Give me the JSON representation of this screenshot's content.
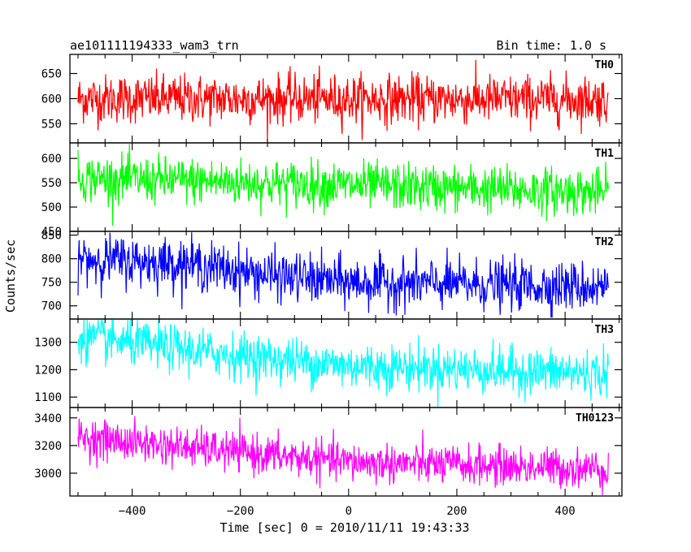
{
  "header": {
    "left_title": "ae101111194333_wam3_trn",
    "right_title": "Bin time: 1.0 s"
  },
  "chart_data": {
    "type": "line",
    "title": "ae101111194333_wam3_trn",
    "bin_time": "Bin time: 1.0 s",
    "xlabel": "Time [sec] 0 = 2010/11/11 19:43:33",
    "ylabel": "Counts/sec",
    "xlim": [
      -515,
      505
    ],
    "x_range": [
      -500,
      480
    ],
    "x_ticks": [
      -400,
      -200,
      0,
      200,
      400
    ],
    "x_tick_labels": [
      "−400",
      "−200",
      "0",
      "200",
      "400"
    ],
    "grid": false,
    "series": [
      {
        "name": "TH0",
        "color": "#ff0000",
        "ylim": [
          512,
          688
        ],
        "y_ticks": [
          550,
          600,
          650
        ],
        "y_tick_labels": [
          "550",
          "600",
          "650"
        ],
        "trend_x": [
          -500,
          480
        ],
        "trend_y": [
          600,
          598
        ],
        "noise_sd": 24,
        "min_shown": 515,
        "max_shown": 685
      },
      {
        "name": "TH1",
        "color": "#00ff00",
        "ylim": [
          450,
          632
        ],
        "y_ticks": [
          450,
          500,
          550,
          600
        ],
        "y_tick_labels": [
          "450",
          "500",
          "550",
          "600"
        ],
        "trend_x": [
          -500,
          480
        ],
        "trend_y": [
          560,
          530
        ],
        "noise_sd": 24,
        "min_shown": 455,
        "max_shown": 630
      },
      {
        "name": "TH2",
        "color": "#0000ff",
        "ylim": [
          672,
          858
        ],
        "y_ticks": [
          700,
          750,
          800,
          850
        ],
        "y_tick_labels": [
          "700",
          "750",
          "800",
          "850"
        ],
        "trend_x": [
          -500,
          -300,
          -150,
          0,
          480
        ],
        "trend_y": [
          800,
          790,
          765,
          750,
          740
        ],
        "noise_sd": 26,
        "min_shown": 675,
        "max_shown": 858
      },
      {
        "name": "TH3",
        "color": "#00ffff",
        "ylim": [
          1062,
          1385
        ],
        "y_ticks": [
          1100,
          1200,
          1300
        ],
        "y_tick_labels": [
          "1100",
          "1200",
          "1300"
        ],
        "trend_x": [
          -500,
          -200,
          0,
          480
        ],
        "trend_y": [
          1320,
          1250,
          1215,
          1185
        ],
        "noise_sd": 42,
        "min_shown": 1065,
        "max_shown": 1385
      },
      {
        "name": "TH0123",
        "color": "#ff00ff",
        "ylim": [
          2835,
          3475
        ],
        "y_ticks": [
          3000,
          3200,
          3400
        ],
        "y_tick_labels": [
          "3000",
          "3200",
          "3400"
        ],
        "trend_x": [
          -500,
          -200,
          0,
          480
        ],
        "trend_y": [
          3260,
          3150,
          3080,
          3030
        ],
        "noise_sd": 70,
        "min_shown": 2840,
        "max_shown": 3470
      }
    ]
  }
}
